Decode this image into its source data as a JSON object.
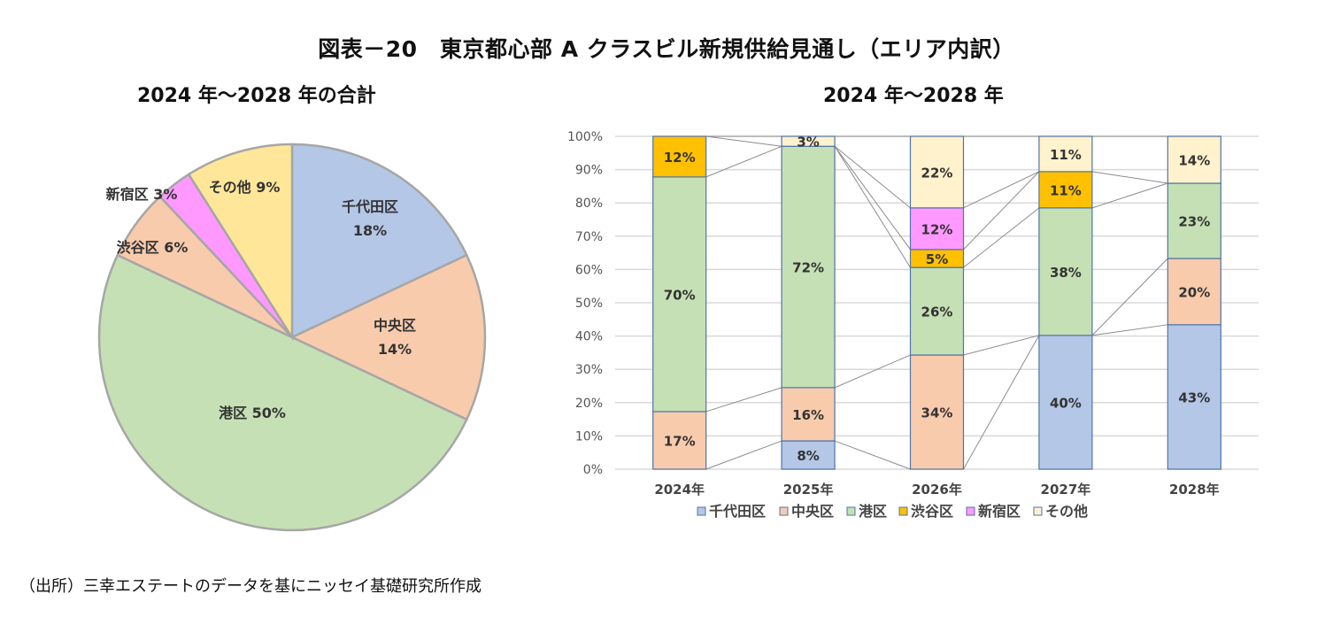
{
  "title": "図表－20　東京都心部 A クラスビル新規供給見通し（エリア内訳）",
  "source": "（出所）三幸エステートのデータを基にニッセイ基礎研究所作成",
  "colors": {
    "千代田区": "#b4c7e7",
    "中央区": "#f8cbad",
    "港区": "#c5e0b4",
    "渋谷区": "#ffc000",
    "新宿区": "#ff99ff",
    "その他": "#fff2cc"
  },
  "chart_data": [
    {
      "type": "pie",
      "title": "2024 年～2028 年の合計",
      "categories": [
        "千代田区",
        "中央区",
        "港区",
        "渋谷区",
        "新宿区",
        "その他"
      ],
      "values": [
        18,
        14,
        50,
        6,
        3,
        9
      ],
      "data_labels": [
        "千代田区\n18%",
        "中央区\n14%",
        "港区 50%",
        "渋谷区 6%",
        "新宿区 3%",
        "その他 9%"
      ],
      "pie_colors": [
        "#b4c7e7",
        "#f8cbad",
        "#c5e0b4",
        "#f8cbad",
        "#ff99ff",
        "#ffe699"
      ],
      "start": "top, clockwise"
    },
    {
      "type": "bar",
      "stacked": "100%",
      "title": "2024 年～2028 年",
      "categories": [
        "2024年",
        "2025年",
        "2026年",
        "2027年",
        "2028年"
      ],
      "ylim": [
        0,
        100
      ],
      "yticks": [
        "0%",
        "10%",
        "20%",
        "30%",
        "40%",
        "50%",
        "60%",
        "70%",
        "80%",
        "90%",
        "100%"
      ],
      "grid": true,
      "series_lines": true,
      "legend": "bottom",
      "series": [
        {
          "name": "千代田区",
          "values": [
            0,
            8.5,
            0,
            40.2,
            43.4
          ],
          "labels": [
            "",
            "8%",
            "",
            "40%",
            "43%"
          ]
        },
        {
          "name": "中央区",
          "values": [
            17.3,
            16,
            34.3,
            0,
            19.9
          ],
          "labels": [
            "17%",
            "16%",
            "34%",
            "",
            "20%"
          ]
        },
        {
          "name": "港区",
          "values": [
            70.5,
            72.5,
            26.3,
            38.3,
            22.6
          ],
          "labels": [
            "70%",
            "72%",
            "26%",
            "38%",
            "23%"
          ]
        },
        {
          "name": "渋谷区",
          "values": [
            12.2,
            0,
            5.4,
            10.9,
            0
          ],
          "labels": [
            "12%",
            "",
            "5%",
            "11%",
            ""
          ]
        },
        {
          "name": "新宿区",
          "values": [
            0,
            0,
            12.5,
            0,
            0
          ],
          "labels": [
            "",
            "",
            "12%",
            "",
            ""
          ]
        },
        {
          "name": "その他",
          "values": [
            0,
            3,
            21.5,
            10.6,
            14.1
          ],
          "labels": [
            "",
            "3%",
            "22%",
            "11%",
            "14%"
          ]
        }
      ]
    }
  ]
}
